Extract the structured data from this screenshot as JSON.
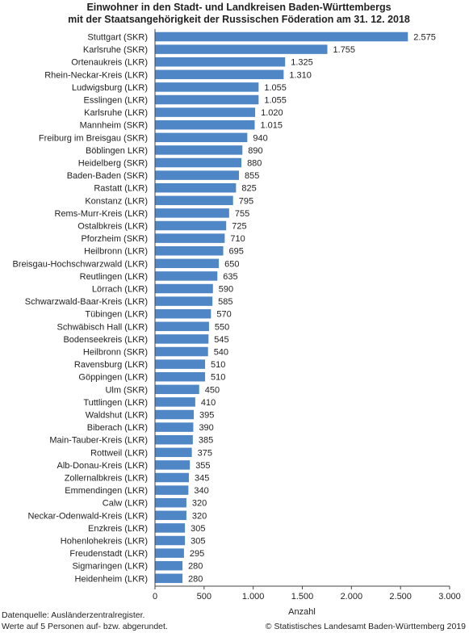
{
  "chart_data": {
    "type": "bar",
    "orientation": "horizontal",
    "title_lines": [
      "Einwohner in den Stadt- und Landkreisen Baden-Württembergs",
      "mit der Staatsangehörigkeit der Russischen Föderation am 31. 12. 2018"
    ],
    "categories": [
      "Stuttgart (SKR)",
      "Karlsruhe (SKR)",
      "Ortenaukreis (LKR)",
      "Rhein-Neckar-Kreis (LKR)",
      "Ludwigsburg (LKR)",
      "Esslingen (LKR)",
      "Karlsruhe (LKR)",
      "Mannheim (SKR)",
      "Freiburg im Breisgau (SKR)",
      "Böblingen LKR)",
      "Heidelberg (SKR)",
      "Baden-Baden (SKR)",
      "Rastatt (LKR)",
      "Konstanz (LKR)",
      "Rems-Murr-Kreis (LKR)",
      "Ostalbkreis (LKR)",
      "Pforzheim (SKR)",
      "Heilbronn (LKR)",
      "Breisgau-Hochschwarzwald (LKR)",
      "Reutlingen (LKR)",
      "Lörrach (LKR)",
      "Schwarzwald-Baar-Kreis (LKR)",
      "Tübingen (LKR)",
      "Schwäbisch Hall (LKR)",
      "Bodenseekreis (LKR)",
      "Heilbronn (SKR)",
      "Ravensburg (LKR)",
      "Göppingen (LKR)",
      "Ulm (SKR)",
      "Tuttlingen (LKR)",
      "Waldshut (LKR)",
      "Biberach (LKR)",
      "Main-Tauber-Kreis (LKR)",
      "Rottweil (LKR)",
      "Alb-Donau-Kreis (LKR)",
      "Zollernalbkreis (LKR)",
      "Emmendingen (LKR)",
      "Calw (LKR)",
      "Neckar-Odenwald-Kreis (LKR)",
      "Enzkreis (LKR)",
      "Hohenlohekreis (LKR)",
      "Freudenstadt (LKR)",
      "Sigmaringen (LKR)",
      "Heidenheim (LKR)"
    ],
    "values": [
      2575,
      1755,
      1325,
      1310,
      1055,
      1055,
      1020,
      1015,
      940,
      890,
      880,
      855,
      825,
      795,
      755,
      725,
      710,
      695,
      650,
      635,
      590,
      585,
      570,
      550,
      545,
      540,
      510,
      510,
      450,
      410,
      395,
      390,
      385,
      375,
      355,
      345,
      340,
      320,
      320,
      305,
      305,
      295,
      280,
      280
    ],
    "value_labels": [
      "2.575",
      "1.755",
      "1.325",
      "1.310",
      "1.055",
      "1.055",
      "1.020",
      "1.015",
      "940",
      "890",
      "880",
      "855",
      "825",
      "795",
      "755",
      "725",
      "710",
      "695",
      "650",
      "635",
      "590",
      "585",
      "570",
      "550",
      "545",
      "540",
      "510",
      "510",
      "450",
      "410",
      "395",
      "390",
      "385",
      "375",
      "355",
      "345",
      "340",
      "320",
      "320",
      "305",
      "305",
      "295",
      "280",
      "280"
    ],
    "xlabel": "Anzahl",
    "xlim": [
      0,
      3000
    ],
    "xticks": [
      0,
      500,
      1000,
      1500,
      2000,
      2500,
      3000
    ],
    "xtick_labels": [
      "0",
      "500",
      "1.000",
      "1.500",
      "2.000",
      "2.500",
      "3.000"
    ],
    "grid": false,
    "bar_color": "#4f86c6"
  },
  "footer": {
    "source_line1": "Datenquelle: Ausländerzentralregister.",
    "source_line2": "Werte auf 5 Personen auf- bzw. abgerundet.",
    "copyright": "© Statistisches Landesamt Baden-Württemberg 2019"
  }
}
